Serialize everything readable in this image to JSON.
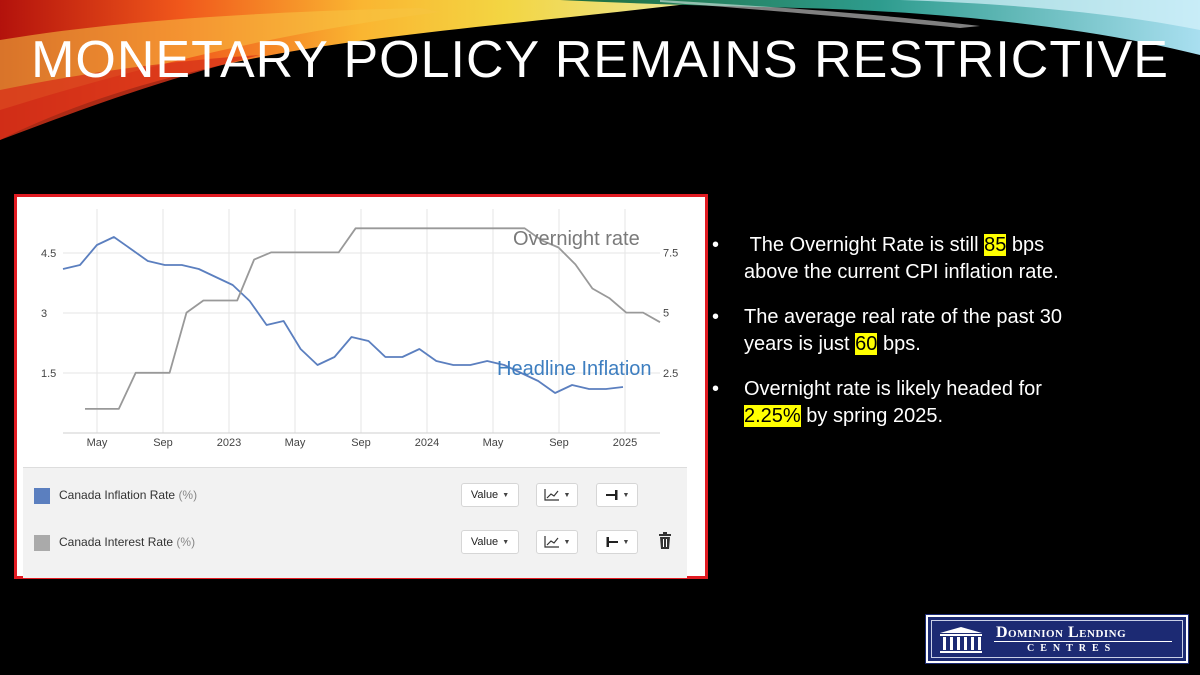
{
  "slide": {
    "title": "MONETARY POLICY REMAINS RESTRICTIVE"
  },
  "chart_data": {
    "type": "line",
    "x_tick_labels": [
      "May",
      "Sep",
      "2023",
      "May",
      "Sep",
      "2024",
      "May",
      "Sep",
      "2025"
    ],
    "left_axis": {
      "ticks": [
        "1.5",
        "3",
        "4.5"
      ],
      "range": [
        0,
        5.6
      ]
    },
    "right_axis": {
      "ticks": [
        "2.5",
        "5",
        "7.5"
      ],
      "range": [
        0,
        9.3
      ]
    },
    "annotations": {
      "overnight": "Overnight rate",
      "inflation": "Headline Inflation"
    },
    "series": [
      {
        "name": "Canada Inflation Rate",
        "axis": "left",
        "color": "#5b7fbf",
        "values": [
          4.1,
          4.2,
          4.7,
          4.9,
          4.6,
          4.3,
          4.2,
          4.2,
          4.1,
          3.9,
          3.7,
          3.3,
          2.7,
          2.8,
          2.1,
          1.7,
          1.9,
          2.4,
          2.3,
          1.9,
          1.9,
          2.1,
          1.8,
          1.7,
          1.7,
          1.8,
          1.7,
          1.5,
          1.3,
          1.0,
          1.2,
          1.1,
          1.1,
          1.15
        ]
      },
      {
        "name": "Canada Interest Rate",
        "axis": "right",
        "color": "#999999",
        "values": [
          1.0,
          1.0,
          1.0,
          2.5,
          2.5,
          2.5,
          5.0,
          5.5,
          5.5,
          5.5,
          7.2,
          7.5,
          7.5,
          7.5,
          7.5,
          7.5,
          8.5,
          8.5,
          8.5,
          8.5,
          8.5,
          8.5,
          8.5,
          8.5,
          8.5,
          8.5,
          8.5,
          8.0,
          7.7,
          7.0,
          6.0,
          5.6,
          5.0,
          5.0,
          4.6
        ]
      }
    ]
  },
  "legend": {
    "items": [
      {
        "label": "Canada Inflation Rate",
        "unit": "(%)",
        "color": "#5b7fbf",
        "value_btn": "Value"
      },
      {
        "label": "Canada Interest Rate",
        "unit": "(%)",
        "color": "#aaaaaa",
        "value_btn": "Value"
      }
    ]
  },
  "bullets": {
    "b1_pre": "The Overnight Rate is still ",
    "b1_hl": "85",
    "b1_post": " bps above the current CPI inflation rate.",
    "b2_pre": "The average real rate of the past 30 years is just ",
    "b2_hl": "60",
    "b2_post": " bps.",
    "b3_pre": "Overnight rate is likely headed for ",
    "b3_hl": "2.25%",
    "b3_post": "  by spring 2025.",
    "marker": "•"
  },
  "logo": {
    "main": "Dominion Lending",
    "sub": "CENTRES"
  }
}
